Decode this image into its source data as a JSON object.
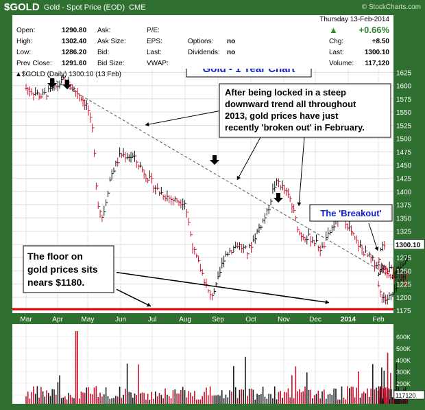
{
  "header": {
    "symbol": "$GOLD",
    "description": "Gold - Spot Price (EOD)",
    "exchange": "CME",
    "brand": "© StockCharts.com"
  },
  "quote": {
    "date": "Thursday  13-Feb-2014",
    "change_pct": "+0.66%",
    "fields": {
      "open_label": "Open:",
      "open": "1290.80",
      "high_label": "High:",
      "high": "1302.40",
      "low_label": "Low:",
      "low": "1286.20",
      "prev_label": "Prev Close:",
      "prev": "1291.60",
      "ask_label": "Ask:",
      "ask_size_label": "Ask Size:",
      "bid_label": "Bid:",
      "bid_size_label": "Bid Size:",
      "pe_label": "P/E:",
      "eps_label": "EPS:",
      "last_label": "Last:",
      "vwap_label": "VWAP:",
      "options_label": "Options:",
      "options": "no",
      "dividends_label": "Dividends:",
      "dividends": "no",
      "chg_label": "Chg:",
      "chg": "+8.50",
      "last2_label": "Last:",
      "last2": "1300.10",
      "volume_label": "Volume:",
      "volume": "117,120"
    }
  },
  "chart_data": {
    "type": "bar",
    "legend": "$GOLD (Daily) 1300.10 (13 Feb)",
    "title": "Gold - 1 Year Chart",
    "x_tick_labels": [
      "Mar",
      "Apr",
      "May",
      "Jun",
      "Jul",
      "Aug",
      "Sep",
      "Oct",
      "Nov",
      "Dec",
      "2014",
      "Feb"
    ],
    "y_ticks": [
      1175,
      1200,
      1225,
      1250,
      1275,
      1300,
      1325,
      1350,
      1375,
      1400,
      1425,
      1450,
      1475,
      1500,
      1525,
      1550,
      1575,
      1600,
      1625
    ],
    "ylim": [
      1170,
      1632
    ],
    "last_price_label": "1300.10",
    "price_path": [
      {
        "x": 0.0,
        "y": 1595
      },
      {
        "x": 0.5,
        "y": 1580
      },
      {
        "x": 0.9,
        "y": 1595
      },
      {
        "x": 1.2,
        "y": 1610
      },
      {
        "x": 1.4,
        "y": 1600
      },
      {
        "x": 1.7,
        "y": 1585
      },
      {
        "x": 2.0,
        "y": 1560
      },
      {
        "x": 2.15,
        "y": 1510
      },
      {
        "x": 2.3,
        "y": 1380
      },
      {
        "x": 2.45,
        "y": 1350
      },
      {
        "x": 2.7,
        "y": 1430
      },
      {
        "x": 3.0,
        "y": 1470
      },
      {
        "x": 3.4,
        "y": 1465
      },
      {
        "x": 3.7,
        "y": 1440
      },
      {
        "x": 4.2,
        "y": 1400
      },
      {
        "x": 4.6,
        "y": 1385
      },
      {
        "x": 5.0,
        "y": 1380
      },
      {
        "x": 5.25,
        "y": 1290
      },
      {
        "x": 5.55,
        "y": 1240
      },
      {
        "x": 5.75,
        "y": 1200
      },
      {
        "x": 5.95,
        "y": 1220
      },
      {
        "x": 6.2,
        "y": 1280
      },
      {
        "x": 6.6,
        "y": 1300
      },
      {
        "x": 6.9,
        "y": 1285
      },
      {
        "x": 7.2,
        "y": 1325
      },
      {
        "x": 7.5,
        "y": 1360
      },
      {
        "x": 7.7,
        "y": 1410
      },
      {
        "x": 7.85,
        "y": 1418
      },
      {
        "x": 8.2,
        "y": 1385
      },
      {
        "x": 8.5,
        "y": 1320
      },
      {
        "x": 8.9,
        "y": 1310
      },
      {
        "x": 9.2,
        "y": 1290
      },
      {
        "x": 9.5,
        "y": 1330
      },
      {
        "x": 9.8,
        "y": 1360
      },
      {
        "x": 10.2,
        "y": 1310
      },
      {
        "x": 10.6,
        "y": 1280
      },
      {
        "x": 11.0,
        "y": 1260
      },
      {
        "x": 11.4,
        "y": 1245
      },
      {
        "x": 11.8,
        "y": 1240
      },
      {
        "x": 12.05,
        "y": 1210
      },
      {
        "x": 12.25,
        "y": 1195
      },
      {
        "x": 12.5,
        "y": 1205
      },
      {
        "x": 12.8,
        "y": 1240
      },
      {
        "x": 13.2,
        "y": 1255
      },
      {
        "x": 13.6,
        "y": 1250
      },
      {
        "x": 13.95,
        "y": 1270
      },
      {
        "x": 14.2,
        "y": 1300
      }
    ],
    "annotations": [
      {
        "text": "After being locked in a steep\ndownward trend all throughout\n2013, gold prices have just\nrecently 'broken out' in February."
      },
      {
        "text": "The floor on\ngold prices sits\nnears $1180."
      },
      {
        "text": "The 'Breakout'"
      }
    ],
    "volume_axis": [
      "600K",
      "500K",
      "400K",
      "300K",
      "200K",
      "100K"
    ],
    "volume_last_label": "117120"
  }
}
